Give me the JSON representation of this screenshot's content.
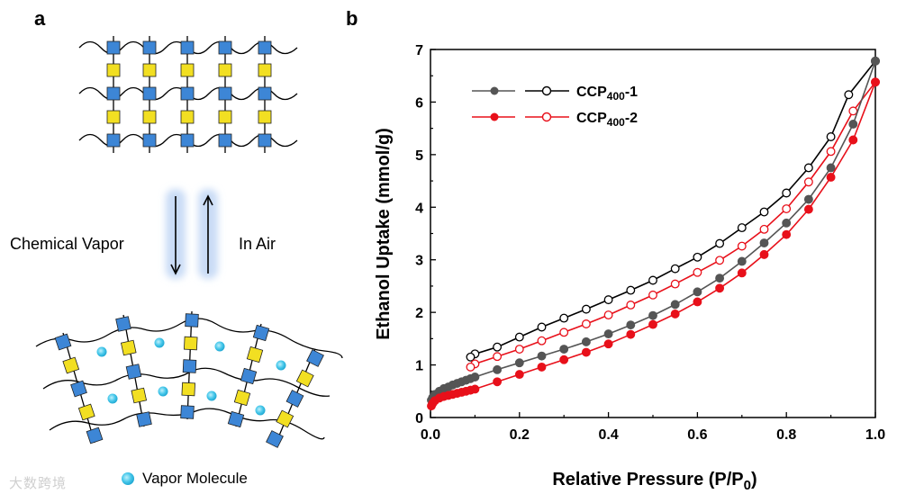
{
  "panel_a": {
    "label": "a",
    "chemical_vapor_label": "Chemical Vapor",
    "in_air_label": "In Air",
    "legend_vapor_label": "Vapor Molecule"
  },
  "panel_b": {
    "label": "b"
  },
  "watermark": "大数跨境",
  "colors": {
    "blue_node": "#3d86d6",
    "yellow_node": "#f2df22",
    "vapor": "#46c7ea",
    "series1": "#555555",
    "series2": "#e8101a"
  },
  "chart_data": {
    "type": "scatter",
    "title": "",
    "xlabel": "Relative Pressure (P/P0)",
    "xlabel_main": "Relative Pressure (P/P",
    "xlabel_sub": "0",
    "xlabel_end": ")",
    "ylabel": "Ethanol Uptake (mmol/g)",
    "xlim": [
      0,
      1.0
    ],
    "ylim": [
      0,
      7
    ],
    "xticks": [
      "0.0",
      "0.2",
      "0.4",
      "0.6",
      "0.8",
      "1.0"
    ],
    "xtick_values": [
      0,
      0.2,
      0.4,
      0.6,
      0.8,
      1.0
    ],
    "yticks": [
      "0",
      "1",
      "2",
      "3",
      "4",
      "5",
      "6",
      "7"
    ],
    "ytick_values": [
      0,
      1,
      2,
      3,
      4,
      5,
      6,
      7
    ],
    "legend_position": "top-left",
    "series": [
      {
        "name": "CCP400-1",
        "name_main": "CCP",
        "name_sub": "400",
        "name_end": "-1",
        "color": "#555555",
        "adsorption": {
          "x": [
            0.002,
            0.005,
            0.01,
            0.02,
            0.03,
            0.04,
            0.05,
            0.06,
            0.07,
            0.08,
            0.09,
            0.1,
            0.15,
            0.2,
            0.25,
            0.3,
            0.35,
            0.4,
            0.45,
            0.5,
            0.55,
            0.6,
            0.65,
            0.7,
            0.75,
            0.8,
            0.85,
            0.9,
            0.95,
            1.0
          ],
          "y": [
            0.33,
            0.38,
            0.44,
            0.5,
            0.55,
            0.58,
            0.62,
            0.65,
            0.68,
            0.71,
            0.74,
            0.77,
            0.91,
            1.04,
            1.17,
            1.3,
            1.44,
            1.59,
            1.76,
            1.94,
            2.15,
            2.39,
            2.65,
            2.97,
            3.32,
            3.7,
            4.15,
            4.75,
            5.58,
            6.78
          ]
        },
        "desorption": {
          "x": [
            1.0,
            0.94,
            0.9,
            0.85,
            0.8,
            0.75,
            0.7,
            0.65,
            0.6,
            0.55,
            0.5,
            0.45,
            0.4,
            0.35,
            0.3,
            0.25,
            0.2,
            0.15,
            0.1,
            0.09
          ],
          "y": [
            6.78,
            6.14,
            5.34,
            4.75,
            4.27,
            3.91,
            3.61,
            3.31,
            3.05,
            2.83,
            2.61,
            2.42,
            2.24,
            2.06,
            1.89,
            1.72,
            1.53,
            1.34,
            1.21,
            1.15
          ]
        }
      },
      {
        "name": "CCP400-2",
        "name_main": "CCP",
        "name_sub": "400",
        "name_end": "-2",
        "color": "#e8101a",
        "adsorption": {
          "x": [
            0.002,
            0.005,
            0.01,
            0.02,
            0.03,
            0.04,
            0.05,
            0.06,
            0.07,
            0.08,
            0.09,
            0.1,
            0.15,
            0.2,
            0.25,
            0.3,
            0.35,
            0.4,
            0.45,
            0.5,
            0.55,
            0.6,
            0.65,
            0.7,
            0.75,
            0.8,
            0.85,
            0.9,
            0.95,
            1.0
          ],
          "y": [
            0.22,
            0.27,
            0.32,
            0.37,
            0.4,
            0.42,
            0.44,
            0.46,
            0.48,
            0.5,
            0.52,
            0.54,
            0.68,
            0.82,
            0.96,
            1.1,
            1.24,
            1.4,
            1.58,
            1.77,
            1.97,
            2.2,
            2.46,
            2.75,
            3.1,
            3.48,
            3.96,
            4.57,
            5.28,
            6.38
          ]
        },
        "desorption": {
          "x": [
            1.0,
            0.95,
            0.9,
            0.85,
            0.8,
            0.75,
            0.7,
            0.65,
            0.6,
            0.55,
            0.5,
            0.45,
            0.4,
            0.35,
            0.3,
            0.25,
            0.2,
            0.15,
            0.1,
            0.09
          ],
          "y": [
            6.38,
            5.83,
            5.06,
            4.48,
            3.97,
            3.58,
            3.26,
            2.99,
            2.76,
            2.54,
            2.33,
            2.14,
            1.95,
            1.78,
            1.62,
            1.46,
            1.3,
            1.16,
            1.02,
            0.96
          ]
        }
      }
    ]
  }
}
